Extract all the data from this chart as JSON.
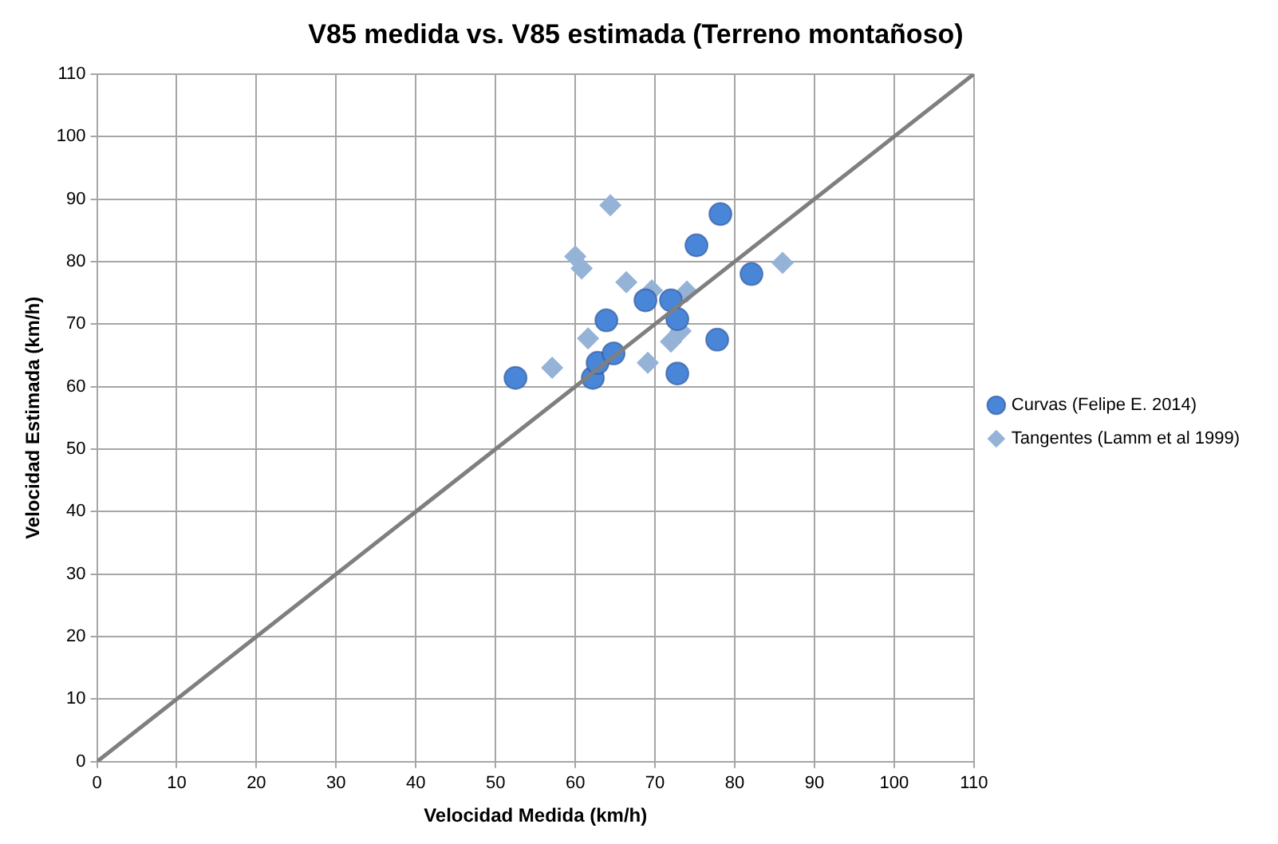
{
  "chart_data": {
    "type": "scatter",
    "title": "V85 medida vs. V85 estimada (Terreno montañoso)",
    "xlabel": "Velocidad Medida (km/h)",
    "ylabel": "Velocidad Estimada (km/h)",
    "xlim": [
      0,
      110
    ],
    "xticks": [
      0,
      10,
      20,
      30,
      40,
      50,
      60,
      70,
      80,
      90,
      100,
      110
    ],
    "ylim": [
      0,
      110
    ],
    "yticks": [
      0,
      10,
      20,
      30,
      40,
      50,
      60,
      70,
      80,
      90,
      100,
      110
    ],
    "grid": true,
    "legend": "right",
    "series": [
      {
        "name": "Curvas (Felipe E. 2014)",
        "color": "#4a86d8",
        "marker": "circle",
        "x": [
          52.5,
          62.2,
          62.8,
          64.8,
          72.8,
          77.8,
          78.2,
          75.2,
          82.1,
          68.8,
          72.0,
          72.8,
          63.9
        ],
        "values": [
          61.4,
          61.4,
          63.8,
          65.3,
          62.1,
          67.5,
          87.6,
          82.6,
          78.0,
          73.8,
          73.8,
          70.8,
          70.6
        ]
      },
      {
        "name": "Tangentes (Lamm et al 1999)",
        "color": "#95b3d7",
        "marker": "diamond",
        "x": [
          64.4,
          60.0,
          60.8,
          86.0,
          66.4,
          69.6,
          74.0,
          61.6,
          73.2,
          72.0,
          57.1,
          69.1
        ],
        "values": [
          89.0,
          80.8,
          78.9,
          79.8,
          76.7,
          75.4,
          75.2,
          67.7,
          68.9,
          67.2,
          63.0,
          63.8
        ]
      },
      {
        "type": "line",
        "color": "#7f7f7f",
        "marker": "none",
        "line_style": "solid",
        "x": [
          0,
          110
        ],
        "values": [
          0,
          110
        ]
      }
    ]
  }
}
